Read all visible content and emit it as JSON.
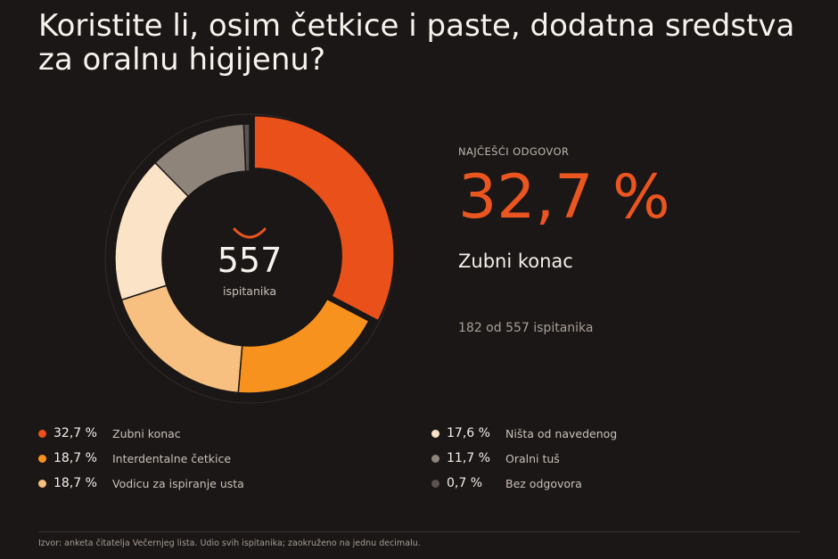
{
  "title_lines": [
    "Koristite li, osim četkice i paste, dodatna sredstva",
    "za oralnu higijenu?"
  ],
  "center": {
    "total": "557",
    "label": "ispitanika"
  },
  "highlight": {
    "kicker": "NAJČEŠĆI ODGOVOR",
    "percent": "32,7 %",
    "answer": "Zubni konac",
    "count_text": "182 od 557 ispitanika"
  },
  "legend": [
    {
      "percent": "32,7 %",
      "label": "Zubni konac"
    },
    {
      "percent": "18,7 %",
      "label": "Interdentalne četkice"
    },
    {
      "percent": "18,7 %",
      "label": "Vodicu za ispiranje usta"
    },
    {
      "percent": "17,6 %",
      "label": "Ništa od navedenog"
    },
    {
      "percent": "11,7 %",
      "label": "Oralni tuš"
    },
    {
      "percent": "0,7 %",
      "label": "Bez odgovora"
    }
  ],
  "source": "Izvor: anketa čitatelja Večernjeg lista. Udio svih ispitanika; zaokruženo na jednu decimalu.",
  "chart_data": {
    "type": "pie",
    "variant": "donut",
    "categories": [
      "Zubni konac",
      "Interdentalne četkice",
      "Vodicu za ispiranje usta",
      "Ništa od navedenog",
      "Oralni tuš",
      "Bez odgovora"
    ],
    "values": [
      32.7,
      18.7,
      18.7,
      17.6,
      11.7,
      0.7
    ],
    "colors": [
      "#ea5019",
      "#f7921e",
      "#f7bf80",
      "#fbe3c7",
      "#8f847a",
      "#5a5350"
    ],
    "highlighted_index": 0,
    "legend_placement": "bottom"
  },
  "colors": {
    "background": "#1b1716",
    "accent": "#ea5520"
  },
  "icons": {
    "center": "smile-icon"
  }
}
